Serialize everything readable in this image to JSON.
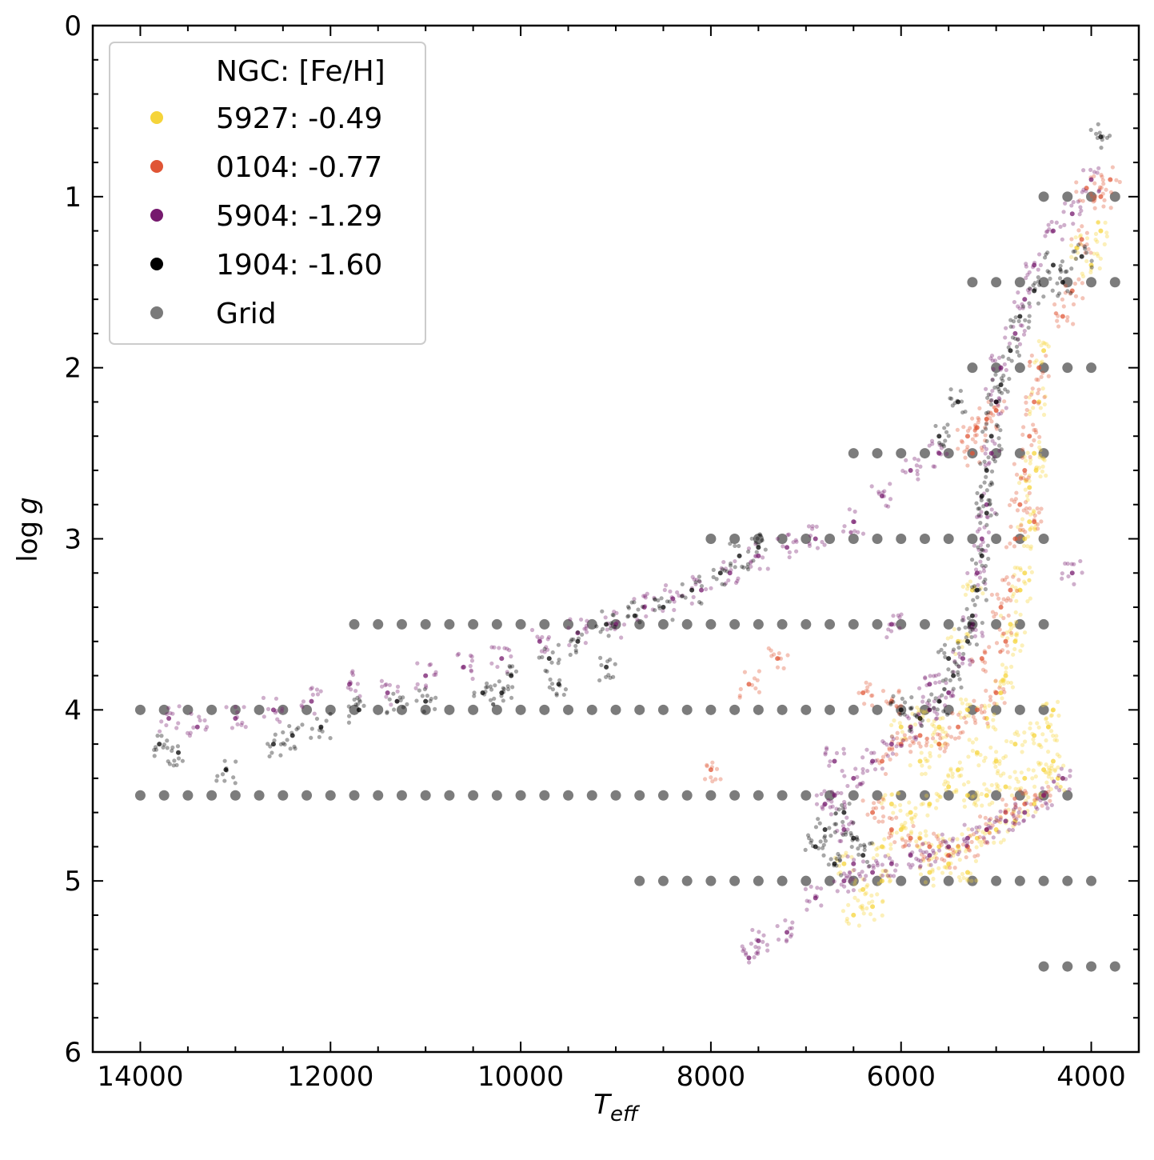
{
  "chart_data": {
    "type": "scatter",
    "title": "",
    "xlabel": "T",
    "xlabel_sub": "eff",
    "ylabel": "log",
    "ylabel_var": "g",
    "xlim": [
      14500,
      3500
    ],
    "ylim": [
      0,
      6
    ],
    "x_ticks": [
      14000,
      12000,
      10000,
      8000,
      6000,
      4000
    ],
    "y_ticks": [
      0,
      1,
      2,
      3,
      4,
      5,
      6
    ],
    "x_inverted": true,
    "y_inverted": true,
    "grid": false,
    "legend": {
      "placement": "top-left",
      "title": "NGC: [Fe/H]",
      "entries": [
        {
          "label": "5927: -0.49",
          "color": "#f5d43a"
        },
        {
          "label": "0104: -0.77",
          "color": "#e05535"
        },
        {
          "label": "5904: -1.29",
          "color": "#761a6e"
        },
        {
          "label": "1904: -1.60",
          "color": "#000000"
        },
        {
          "label": "Grid",
          "color": "#7a7a7a"
        }
      ]
    },
    "grid_points": [
      {
        "logg": 1.0,
        "teff": [
          4500,
          4250,
          4000,
          3750
        ]
      },
      {
        "logg": 1.5,
        "teff": [
          5250,
          5000,
          4750,
          4500,
          4250,
          4000,
          3750
        ]
      },
      {
        "logg": 2.0,
        "teff": [
          5250,
          5000,
          4750,
          4500,
          4250,
          4000
        ]
      },
      {
        "logg": 2.5,
        "teff": [
          6500,
          6250,
          6000,
          5750,
          5500,
          5250,
          5000,
          4750,
          4500
        ]
      },
      {
        "logg": 3.0,
        "teff": [
          8000,
          7750,
          7500,
          7250,
          7000,
          6750,
          6500,
          6250,
          6000,
          5750,
          5500,
          5250,
          5000,
          4750,
          4500
        ]
      },
      {
        "logg": 3.5,
        "teff": [
          11750,
          11500,
          11250,
          11000,
          10750,
          10500,
          10250,
          10000,
          9750,
          9500,
          9250,
          9000,
          8750,
          8500,
          8250,
          8000,
          7750,
          7500,
          7250,
          7000,
          6750,
          6500,
          6250,
          6000,
          5750,
          5500,
          5250,
          5000,
          4750,
          4500
        ]
      },
      {
        "logg": 4.0,
        "teff": [
          14000,
          13750,
          13500,
          13250,
          13000,
          12750,
          12500,
          12250,
          12000,
          11750,
          11500,
          11250,
          11000,
          10750,
          10500,
          10250,
          10000,
          9750,
          9500,
          9250,
          9000,
          8750,
          8500,
          8250,
          8000,
          7750,
          7500,
          7250,
          7000,
          6750,
          6500,
          6250,
          6000,
          5750,
          5500,
          5250,
          5000,
          4750,
          4500
        ]
      },
      {
        "logg": 4.5,
        "teff": [
          14000,
          13750,
          13500,
          13250,
          13000,
          12750,
          12500,
          12250,
          12000,
          11750,
          11500,
          11250,
          11000,
          10750,
          10500,
          10250,
          10000,
          9750,
          9500,
          9250,
          9000,
          8750,
          8500,
          8250,
          8000,
          7750,
          7500,
          7250,
          7000,
          6750,
          6500,
          6250,
          6000,
          5750,
          5500,
          5250,
          5000,
          4750,
          4500,
          4250
        ]
      },
      {
        "logg": 5.0,
        "teff": [
          8750,
          8500,
          8250,
          8000,
          7750,
          7500,
          7250,
          7000,
          6750,
          6500,
          6250,
          6000,
          5750,
          5500,
          5250,
          5000,
          4750,
          4500,
          4250,
          4000
        ]
      },
      {
        "logg": 5.5,
        "teff": [
          4500,
          4250,
          4000,
          3750
        ]
      }
    ],
    "series": [
      {
        "name": "5927: -0.49",
        "color": "#f5d43a",
        "points": [
          [
            5800,
            4.3
          ],
          [
            5600,
            4.2
          ],
          [
            5400,
            4.35
          ],
          [
            5200,
            4.25
          ],
          [
            5000,
            4.3
          ],
          [
            4800,
            4.2
          ],
          [
            4600,
            4.15
          ],
          [
            4450,
            4.1
          ],
          [
            4400,
            4.3
          ],
          [
            5500,
            4.45
          ],
          [
            5300,
            4.5
          ],
          [
            5100,
            4.5
          ],
          [
            4900,
            4.45
          ],
          [
            4700,
            4.4
          ],
          [
            4500,
            4.35
          ],
          [
            5700,
            4.55
          ],
          [
            5900,
            4.6
          ],
          [
            6100,
            4.55
          ],
          [
            6000,
            4.7
          ],
          [
            5800,
            4.75
          ],
          [
            5600,
            4.8
          ],
          [
            5400,
            4.8
          ],
          [
            5200,
            4.75
          ],
          [
            5000,
            4.7
          ],
          [
            4800,
            4.65
          ],
          [
            4600,
            4.55
          ],
          [
            5500,
            4.9
          ],
          [
            5300,
            4.95
          ],
          [
            5700,
            4.95
          ],
          [
            6200,
            4.8
          ],
          [
            5100,
            4.05
          ],
          [
            4950,
            3.9
          ],
          [
            4800,
            3.6
          ],
          [
            4750,
            3.3
          ],
          [
            4700,
            3.0
          ],
          [
            4650,
            2.7
          ],
          [
            4600,
            2.5
          ],
          [
            4550,
            2.2
          ],
          [
            4500,
            1.9
          ],
          [
            4900,
            3.8
          ],
          [
            4850,
            3.5
          ],
          [
            4700,
            3.2
          ],
          [
            4650,
            2.9
          ],
          [
            4580,
            2.6
          ],
          [
            6300,
            5.15
          ],
          [
            6400,
            5.05
          ],
          [
            6500,
            5.2
          ],
          [
            5250,
            3.3
          ],
          [
            5400,
            3.6
          ],
          [
            4150,
            1.3
          ],
          [
            4000,
            1.4
          ],
          [
            3900,
            1.2
          ],
          [
            5600,
            4.1
          ],
          [
            5800,
            4.05
          ],
          [
            6000,
            4.1
          ],
          [
            5300,
            4.0
          ],
          [
            4400,
            4.0
          ],
          [
            4350,
            4.4
          ],
          [
            6600,
            4.9
          ],
          [
            6200,
            5.0
          ]
        ]
      },
      {
        "name": "0104: -0.77",
        "color": "#e05535",
        "points": [
          [
            6200,
            4.3
          ],
          [
            6000,
            4.2
          ],
          [
            5800,
            4.15
          ],
          [
            5600,
            4.2
          ],
          [
            5400,
            4.1
          ],
          [
            5200,
            4.0
          ],
          [
            5000,
            3.9
          ],
          [
            4900,
            3.6
          ],
          [
            4850,
            3.3
          ],
          [
            4800,
            3.0
          ],
          [
            4750,
            2.8
          ],
          [
            4700,
            2.6
          ],
          [
            4650,
            2.4
          ],
          [
            4600,
            2.2
          ],
          [
            4550,
            2.0
          ],
          [
            5300,
            2.4
          ],
          [
            5200,
            2.35
          ],
          [
            5100,
            2.3
          ],
          [
            5000,
            2.25
          ],
          [
            5250,
            2.5
          ],
          [
            6300,
            4.6
          ],
          [
            6100,
            4.7
          ],
          [
            5900,
            4.75
          ],
          [
            5700,
            4.8
          ],
          [
            5500,
            4.85
          ],
          [
            5300,
            4.8
          ],
          [
            5100,
            4.7
          ],
          [
            4900,
            4.6
          ],
          [
            4700,
            4.55
          ],
          [
            4500,
            4.5
          ],
          [
            6400,
            3.9
          ],
          [
            6100,
            3.95
          ],
          [
            7300,
            3.7
          ],
          [
            7600,
            3.85
          ],
          [
            8000,
            4.35
          ],
          [
            4300,
            1.7
          ],
          [
            4200,
            1.55
          ],
          [
            4100,
            1.25
          ],
          [
            3900,
            1.0
          ],
          [
            3800,
            0.9
          ],
          [
            4050,
            0.95
          ],
          [
            4600,
            2.9
          ],
          [
            4950,
            3.4
          ],
          [
            5150,
            3.7
          ]
        ]
      },
      {
        "name": "5904: -1.29",
        "color": "#761a6e",
        "points": [
          [
            6700,
            4.5
          ],
          [
            6500,
            4.4
          ],
          [
            6300,
            4.3
          ],
          [
            6100,
            4.2
          ],
          [
            5900,
            4.1
          ],
          [
            5700,
            4.0
          ],
          [
            5500,
            3.9
          ],
          [
            5350,
            3.7
          ],
          [
            5250,
            3.5
          ],
          [
            5200,
            3.2
          ],
          [
            5150,
            3.0
          ],
          [
            5100,
            2.8
          ],
          [
            5050,
            2.5
          ],
          [
            5000,
            2.2
          ],
          [
            4950,
            2.0
          ],
          [
            4800,
            1.8
          ],
          [
            4700,
            1.6
          ],
          [
            4600,
            1.4
          ],
          [
            4400,
            1.2
          ],
          [
            4200,
            1.1
          ],
          [
            4000,
            0.9
          ],
          [
            6600,
            4.7
          ],
          [
            6500,
            4.9
          ],
          [
            6300,
            4.95
          ],
          [
            6100,
            4.9
          ],
          [
            5900,
            4.85
          ],
          [
            5700,
            4.85
          ],
          [
            5500,
            4.8
          ],
          [
            5300,
            4.75
          ],
          [
            5100,
            4.7
          ],
          [
            4900,
            4.65
          ],
          [
            4700,
            4.6
          ],
          [
            4500,
            4.5
          ],
          [
            4300,
            4.4
          ],
          [
            6800,
            4.55
          ],
          [
            6700,
            4.3
          ],
          [
            5600,
            2.5
          ],
          [
            5900,
            2.6
          ],
          [
            6200,
            2.75
          ],
          [
            6500,
            2.9
          ],
          [
            6900,
            3.0
          ],
          [
            7200,
            3.05
          ],
          [
            7500,
            3.1
          ],
          [
            7800,
            3.2
          ],
          [
            8100,
            3.3
          ],
          [
            8400,
            3.35
          ],
          [
            8700,
            3.4
          ],
          [
            9000,
            3.5
          ],
          [
            9400,
            3.55
          ],
          [
            9800,
            3.6
          ],
          [
            10200,
            3.7
          ],
          [
            10600,
            3.75
          ],
          [
            11000,
            3.8
          ],
          [
            11400,
            3.9
          ],
          [
            11800,
            3.85
          ],
          [
            12200,
            3.95
          ],
          [
            12600,
            4.0
          ],
          [
            13000,
            4.05
          ],
          [
            13400,
            4.1
          ],
          [
            13700,
            4.05
          ],
          [
            7500,
            5.35
          ],
          [
            7600,
            5.45
          ],
          [
            7200,
            5.3
          ],
          [
            6900,
            5.1
          ],
          [
            6600,
            5.0
          ],
          [
            4200,
            3.2
          ],
          [
            5700,
            3.85
          ],
          [
            6100,
            3.5
          ]
        ]
      },
      {
        "name": "1904: -1.60",
        "color": "#000000",
        "points": [
          [
            6800,
            4.7
          ],
          [
            6700,
            4.9
          ],
          [
            6600,
            4.6
          ],
          [
            6500,
            4.75
          ],
          [
            6400,
            4.85
          ],
          [
            5800,
            4.05
          ],
          [
            5600,
            3.95
          ],
          [
            5450,
            3.8
          ],
          [
            5300,
            3.6
          ],
          [
            5250,
            3.45
          ],
          [
            5200,
            3.3
          ],
          [
            5150,
            3.1
          ],
          [
            5100,
            2.85
          ],
          [
            5150,
            2.75
          ],
          [
            5100,
            2.6
          ],
          [
            5050,
            2.4
          ],
          [
            5000,
            2.2
          ],
          [
            4950,
            2.1
          ],
          [
            4850,
            1.9
          ],
          [
            4750,
            1.7
          ],
          [
            4600,
            1.55
          ],
          [
            4400,
            1.4
          ],
          [
            4300,
            1.5
          ],
          [
            4100,
            1.35
          ],
          [
            3900,
            0.65
          ],
          [
            5400,
            2.2
          ],
          [
            5600,
            2.4
          ],
          [
            7500,
            3.05
          ],
          [
            7700,
            3.1
          ],
          [
            7900,
            3.2
          ],
          [
            8200,
            3.3
          ],
          [
            8500,
            3.4
          ],
          [
            8800,
            3.45
          ],
          [
            9100,
            3.5
          ],
          [
            9400,
            3.6
          ],
          [
            9700,
            3.7
          ],
          [
            10100,
            3.8
          ],
          [
            10400,
            3.9
          ],
          [
            11000,
            3.95
          ],
          [
            11300,
            3.95
          ],
          [
            11700,
            4.0
          ],
          [
            12100,
            4.1
          ],
          [
            12400,
            4.15
          ],
          [
            12600,
            4.2
          ],
          [
            13100,
            4.35
          ],
          [
            13600,
            4.25
          ],
          [
            13800,
            4.2
          ],
          [
            9100,
            3.75
          ],
          [
            9600,
            3.85
          ],
          [
            10200,
            3.9
          ],
          [
            5500,
            3.7
          ],
          [
            6000,
            4.0
          ],
          [
            6900,
            4.8
          ]
        ]
      }
    ]
  }
}
